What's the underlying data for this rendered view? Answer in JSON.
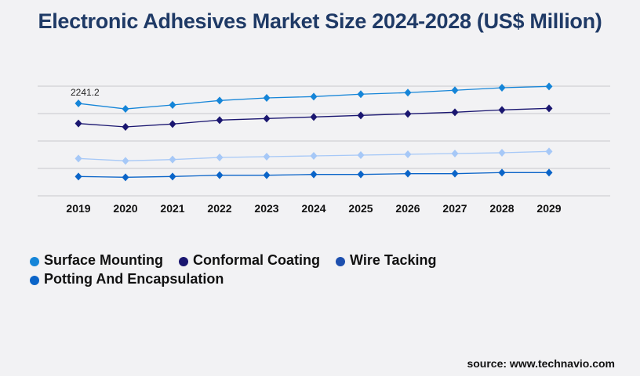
{
  "title": "Electronic Adhesives Market Size 2024-2028 (US$ Million)",
  "source": "source: www.technavio.com",
  "chart_data": {
    "type": "line",
    "title": "Electronic Adhesives Market Size 2024-2028 (US$ Million)",
    "categories": [
      "2019",
      "2020",
      "2021",
      "2022",
      "2023",
      "2024",
      "2025",
      "2026",
      "2027",
      "2028",
      "2029"
    ],
    "ylim": [
      0,
      2660
    ],
    "grid": true,
    "legend": "bottom-left",
    "annotations": [
      {
        "series": 0,
        "index": 0,
        "label": "2241.2"
      }
    ],
    "series": [
      {
        "name": "Surface Mounting",
        "color": "#1585d8",
        "values": [
          2241.2,
          2108,
          2204,
          2312,
          2375,
          2407,
          2465,
          2503,
          2560,
          2622,
          2654
        ]
      },
      {
        "name": "Conformal Coating",
        "color": "#1a1670",
        "values": [
          1754,
          1672,
          1742,
          1837,
          1875,
          1913,
          1951,
          1989,
          2027,
          2084,
          2122
        ]
      },
      {
        "name": "Wire Tacking",
        "color": "#a6c8f7",
        "legend_color": "#1d4fae",
        "values": [
          906,
          849,
          880,
          931,
          950,
          969,
          988,
          1007,
          1026,
          1045,
          1077
        ]
      },
      {
        "name": "Potting And Encapsulation",
        "color": "#0a64c8",
        "values": [
          469,
          450,
          469,
          500,
          500,
          519,
          519,
          538,
          538,
          564,
          564
        ]
      }
    ]
  }
}
